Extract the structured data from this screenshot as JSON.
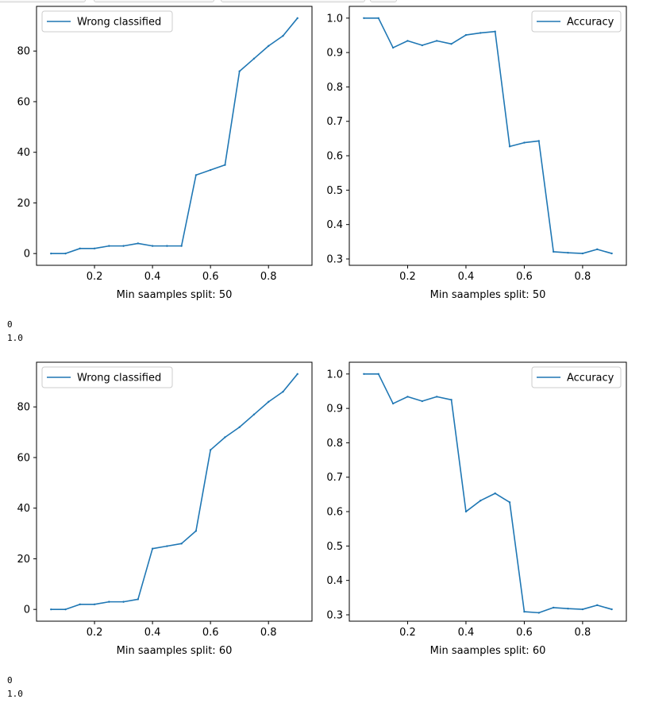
{
  "colors": {
    "series": "#1f77b4",
    "axes": "#000000",
    "legend_border": "#cccccc",
    "text": "#000000"
  },
  "outputs": [
    {
      "line1": "0",
      "line2": "1.0"
    },
    {
      "line1": "0",
      "line2": "1.0"
    }
  ],
  "chart_data": [
    {
      "type": "line",
      "x": [
        0.05,
        0.1,
        0.15,
        0.2,
        0.25,
        0.3,
        0.35,
        0.4,
        0.45,
        0.5,
        0.55,
        0.6,
        0.65,
        0.7,
        0.75,
        0.8,
        0.85,
        0.9
      ],
      "series": [
        {
          "name": "Wrong classified",
          "values": [
            0,
            0,
            2,
            2,
            3,
            3,
            4,
            3,
            3,
            3,
            31,
            33,
            35,
            72,
            77,
            82,
            86,
            93
          ]
        }
      ],
      "xlabel": "Min saamples split: 50",
      "ylabel": "",
      "xlim": [
        0.0,
        0.95
      ],
      "ylim": [
        -4.65,
        97.65
      ],
      "xticks": [
        0.2,
        0.4,
        0.6,
        0.8
      ],
      "yticks": [
        0,
        20,
        40,
        60,
        80
      ],
      "xtick_labels": [
        "0.2",
        "0.4",
        "0.6",
        "0.8"
      ],
      "ytick_labels": [
        "0",
        "20",
        "40",
        "60",
        "80"
      ],
      "grid": false,
      "legend": "upper left"
    },
    {
      "type": "line",
      "x": [
        0.05,
        0.1,
        0.15,
        0.2,
        0.25,
        0.3,
        0.35,
        0.4,
        0.45,
        0.5,
        0.55,
        0.6,
        0.65,
        0.7,
        0.75,
        0.8,
        0.85,
        0.9
      ],
      "series": [
        {
          "name": "Accuracy",
          "values": [
            1.0,
            1.0,
            0.914,
            0.934,
            0.921,
            0.934,
            0.925,
            0.951,
            0.957,
            0.961,
            0.627,
            0.638,
            0.643,
            0.321,
            0.318,
            0.316,
            0.328,
            0.316
          ]
        }
      ],
      "xlabel": "Min saamples split: 50",
      "ylabel": "",
      "xlim": [
        0.0,
        0.95
      ],
      "ylim": [
        0.2815,
        1.0342
      ],
      "xticks": [
        0.2,
        0.4,
        0.6,
        0.8
      ],
      "yticks": [
        0.3,
        0.4,
        0.5,
        0.6,
        0.7,
        0.8,
        0.9,
        1.0
      ],
      "xtick_labels": [
        "0.2",
        "0.4",
        "0.6",
        "0.8"
      ],
      "ytick_labels": [
        "0.3",
        "0.4",
        "0.5",
        "0.6",
        "0.7",
        "0.8",
        "0.9",
        "1.0"
      ],
      "grid": false,
      "legend": "upper right"
    },
    {
      "type": "line",
      "x": [
        0.05,
        0.1,
        0.15,
        0.2,
        0.25,
        0.3,
        0.35,
        0.4,
        0.45,
        0.5,
        0.55,
        0.6,
        0.65,
        0.7,
        0.75,
        0.8,
        0.85,
        0.9
      ],
      "series": [
        {
          "name": "Wrong classified",
          "values": [
            0,
            0,
            2,
            2,
            3,
            3,
            4,
            24,
            25,
            26,
            31,
            63,
            68,
            72,
            77,
            82,
            86,
            93
          ]
        }
      ],
      "xlabel": "Min saamples split: 60",
      "ylabel": "",
      "xlim": [
        0.0,
        0.95
      ],
      "ylim": [
        -4.65,
        97.65
      ],
      "xticks": [
        0.2,
        0.4,
        0.6,
        0.8
      ],
      "yticks": [
        0,
        20,
        40,
        60,
        80
      ],
      "xtick_labels": [
        "0.2",
        "0.4",
        "0.6",
        "0.8"
      ],
      "ytick_labels": [
        "0",
        "20",
        "40",
        "60",
        "80"
      ],
      "grid": false,
      "legend": "upper left"
    },
    {
      "type": "line",
      "x": [
        0.05,
        0.1,
        0.15,
        0.2,
        0.25,
        0.3,
        0.35,
        0.4,
        0.45,
        0.5,
        0.55,
        0.6,
        0.65,
        0.7,
        0.75,
        0.8,
        0.85,
        0.9
      ],
      "series": [
        {
          "name": "Accuracy",
          "values": [
            1.0,
            1.0,
            0.914,
            0.934,
            0.921,
            0.934,
            0.925,
            0.6,
            0.632,
            0.653,
            0.627,
            0.309,
            0.306,
            0.321,
            0.318,
            0.316,
            0.328,
            0.316
          ]
        }
      ],
      "xlabel": "Min saamples split: 60",
      "ylabel": "",
      "xlim": [
        0.0,
        0.95
      ],
      "ylim": [
        0.2815,
        1.0342
      ],
      "xticks": [
        0.2,
        0.4,
        0.6,
        0.8
      ],
      "yticks": [
        0.3,
        0.4,
        0.5,
        0.6,
        0.7,
        0.8,
        0.9,
        1.0
      ],
      "xtick_labels": [
        "0.2",
        "0.4",
        "0.6",
        "0.8"
      ],
      "ytick_labels": [
        "0.3",
        "0.4",
        "0.5",
        "0.6",
        "0.7",
        "0.8",
        "0.9",
        "1.0"
      ],
      "grid": false,
      "legend": "upper right"
    }
  ]
}
